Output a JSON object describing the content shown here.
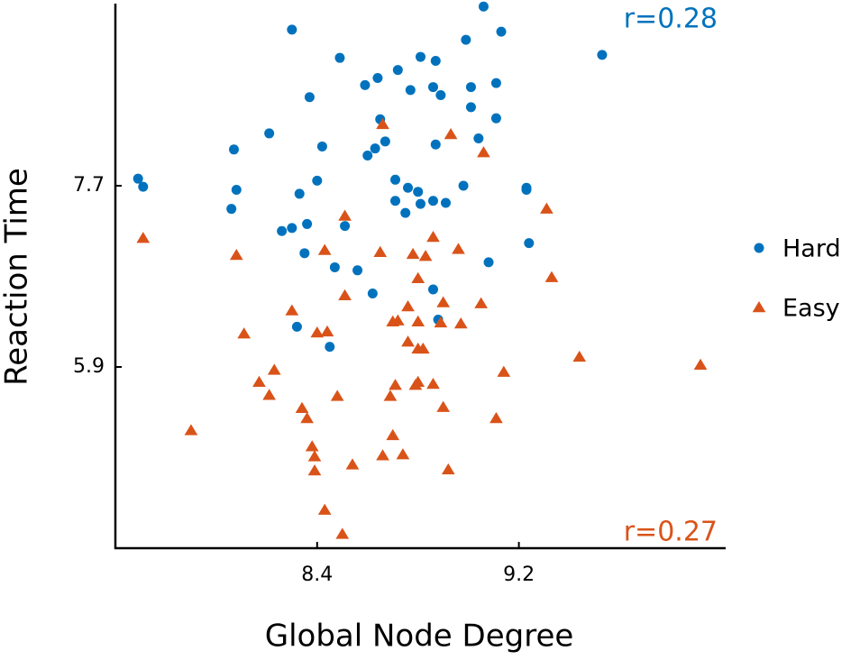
{
  "chart_data": {
    "type": "scatter",
    "xlabel": "Global Node Degree",
    "ylabel": "Reaction Time",
    "xlim": [
      7.6,
      10.02
    ],
    "ylim": [
      4.1,
      9.5
    ],
    "xticks": [
      8.4,
      9.2
    ],
    "yticks": [
      7.7,
      5.9
    ],
    "annotations": [
      {
        "text": "r=0.28",
        "color": "#0072BD"
      },
      {
        "text": "r=0.27",
        "color": "#D95319"
      }
    ],
    "series": [
      {
        "name": "Hard",
        "color": "#0072BD",
        "marker": "circle",
        "x": [
          9.06,
          8.3,
          9.13,
          8.99,
          9.53,
          8.49,
          8.81,
          8.87,
          8.72,
          8.64,
          8.59,
          8.77,
          8.86,
          9.01,
          9.11,
          8.89,
          8.37,
          9.01,
          8.65,
          9.11,
          8.21,
          8.67,
          8.42,
          8.63,
          8.87,
          9.04,
          8.6,
          8.07,
          7.69,
          7.71,
          8.08,
          8.4,
          8.71,
          8.33,
          8.76,
          8.8,
          8.98,
          9.23,
          9.23,
          8.06,
          8.71,
          8.86,
          8.91,
          8.75,
          8.81,
          8.36,
          8.26,
          8.3,
          8.51,
          8.35,
          9.24,
          8.47,
          8.56,
          9.08,
          8.62,
          8.86,
          8.88,
          8.32,
          8.45
        ],
        "values": [
          9.48,
          9.25,
          9.23,
          9.15,
          9.0,
          8.97,
          8.98,
          8.94,
          8.85,
          8.77,
          8.7,
          8.65,
          8.68,
          8.68,
          8.72,
          8.6,
          8.58,
          8.48,
          8.36,
          8.37,
          8.22,
          8.14,
          8.09,
          8.07,
          8.11,
          8.17,
          8.0,
          8.06,
          7.77,
          7.69,
          7.66,
          7.75,
          7.76,
          7.62,
          7.68,
          7.64,
          7.7,
          7.68,
          7.66,
          7.47,
          7.55,
          7.55,
          7.53,
          7.43,
          7.52,
          7.32,
          7.25,
          7.28,
          7.3,
          7.03,
          7.13,
          6.89,
          6.86,
          6.94,
          6.63,
          6.67,
          6.37,
          6.3,
          6.1
        ]
      },
      {
        "name": "Easy",
        "color": "#D95319",
        "marker": "triangle",
        "x": [
          8.66,
          8.93,
          9.06,
          8.51,
          9.31,
          7.71,
          8.86,
          8.43,
          8.08,
          8.65,
          8.78,
          8.83,
          8.96,
          8.8,
          9.33,
          8.51,
          8.3,
          9.05,
          8.9,
          8.76,
          8.8,
          8.7,
          8.72,
          8.89,
          8.97,
          8.11,
          8.4,
          8.44,
          8.76,
          8.8,
          8.82,
          8.23,
          8.17,
          8.21,
          8.48,
          8.71,
          8.79,
          8.8,
          8.86,
          9.14,
          9.44,
          9.92,
          8.34,
          8.36,
          8.69,
          8.9,
          9.11,
          7.9,
          8.7,
          8.38,
          8.39,
          8.39,
          8.54,
          8.66,
          8.74,
          8.92,
          8.43,
          8.5
        ],
        "values": [
          8.31,
          8.21,
          8.03,
          7.4,
          7.47,
          7.18,
          7.19,
          7.06,
          7.01,
          7.04,
          7.02,
          7.0,
          7.07,
          6.78,
          6.79,
          6.61,
          6.46,
          6.53,
          6.54,
          6.5,
          6.35,
          6.35,
          6.36,
          6.34,
          6.33,
          6.23,
          6.24,
          6.25,
          6.15,
          6.08,
          6.08,
          5.87,
          5.75,
          5.62,
          5.61,
          5.72,
          5.72,
          5.75,
          5.73,
          5.85,
          6.0,
          5.92,
          5.49,
          5.39,
          5.61,
          5.5,
          5.39,
          5.27,
          5.22,
          5.11,
          5.01,
          4.87,
          4.93,
          5.02,
          5.03,
          4.88,
          4.48,
          4.24
        ]
      }
    ]
  }
}
